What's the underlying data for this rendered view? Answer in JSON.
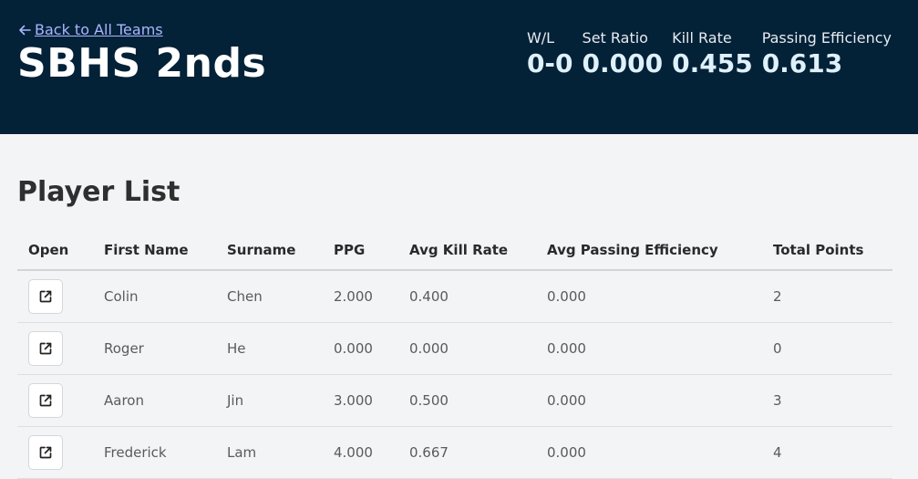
{
  "header": {
    "back_link": "Back to All Teams",
    "team_name": "SBHS 2nds",
    "stats": [
      {
        "label": "W/L",
        "value": "0-0"
      },
      {
        "label": "Set Ratio",
        "value": "0.000"
      },
      {
        "label": "Kill Rate",
        "value": "0.455"
      },
      {
        "label": "Passing Efficiency",
        "value": "0.613"
      }
    ]
  },
  "player_list": {
    "title": "Player List",
    "columns": [
      "Open",
      "First Name",
      "Surname",
      "PPG",
      "Avg Kill Rate",
      "Avg Passing Efficiency",
      "Total Points"
    ],
    "rows": [
      {
        "first": "Colin",
        "surname": "Chen",
        "ppg": "2.000",
        "kill": "0.400",
        "pass": "0.000",
        "total": "2"
      },
      {
        "first": "Roger",
        "surname": "He",
        "ppg": "0.000",
        "kill": "0.000",
        "pass": "0.000",
        "total": "0"
      },
      {
        "first": "Aaron",
        "surname": "Jin",
        "ppg": "3.000",
        "kill": "0.500",
        "pass": "0.000",
        "total": "3"
      },
      {
        "first": "Frederick",
        "surname": "Lam",
        "ppg": "4.000",
        "kill": "0.667",
        "pass": "0.000",
        "total": "4"
      }
    ]
  },
  "icons": {
    "back": "arrow-left-icon",
    "open": "external-link-icon"
  },
  "colors": {
    "header_bg": "#032137",
    "link": "#aab6ff",
    "page_bg": "#f3f4f6"
  }
}
